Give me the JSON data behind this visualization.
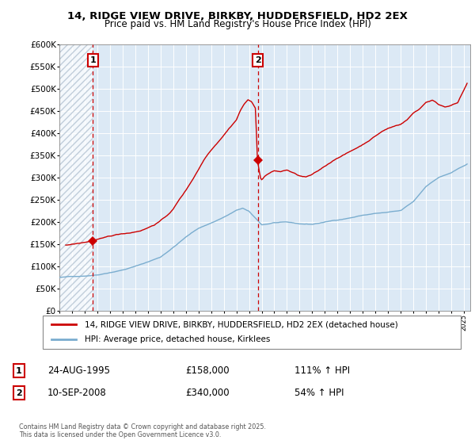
{
  "title1": "14, RIDGE VIEW DRIVE, BIRKBY, HUDDERSFIELD, HD2 2EX",
  "title2": "Price paid vs. HM Land Registry's House Price Index (HPI)",
  "legend1": "14, RIDGE VIEW DRIVE, BIRKBY, HUDDERSFIELD, HD2 2EX (detached house)",
  "legend2": "HPI: Average price, detached house, Kirklees",
  "annotation1_label": "1",
  "annotation1_date": "24-AUG-1995",
  "annotation1_price": "£158,000",
  "annotation1_hpi": "111% ↑ HPI",
  "annotation2_label": "2",
  "annotation2_date": "10-SEP-2008",
  "annotation2_price": "£340,000",
  "annotation2_hpi": "54% ↑ HPI",
  "footer": "Contains HM Land Registry data © Crown copyright and database right 2025.\nThis data is licensed under the Open Government Licence v3.0.",
  "vline1_x": 1995.64,
  "vline2_x": 2008.69,
  "sale1_x": 1995.64,
  "sale1_y": 158000,
  "sale2_x": 2008.69,
  "sale2_y": 340000,
  "red_color": "#cc0000",
  "blue_color": "#7aadcf",
  "bg_color": "#dce9f5",
  "ylim": [
    0,
    600000
  ],
  "xlim_start": 1993.0,
  "xlim_end": 2025.5
}
